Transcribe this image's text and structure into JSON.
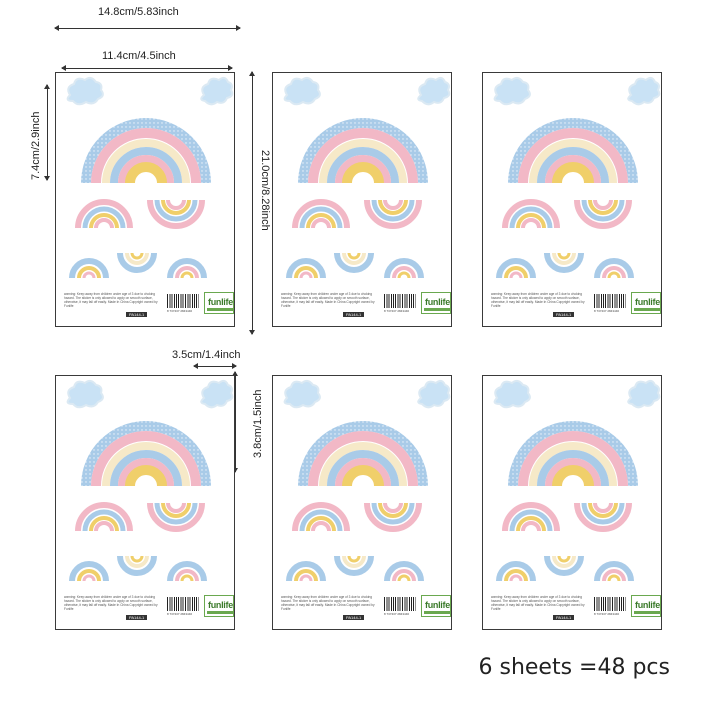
{
  "dimensions": {
    "sheet_width": "14.8cm/5.83inch",
    "art_width": "11.4cm/4.5inch",
    "art_height": "7.4cm/2.9inch",
    "sheet_height": "21.0cm/8.28inch",
    "small_width": "3.5cm/1.4inch",
    "small_height": "3.8cm/1.5inch"
  },
  "sheet": {
    "warning": "warning: Keep away from children under age of 3 due to choking hazard. The sticker is only allowed to apply on smooth surface, otherwise, it may fall off easily. Made In China Copyright owned by Funlife",
    "barcode_number": "8 737437 2843446",
    "brand": "funlife",
    "code": "PA144-1"
  },
  "summary": "6 sheets =48 pcs",
  "colors": {
    "pink": "#f2b8c6",
    "blue": "#a9cbe8",
    "cream": "#f6e9c8",
    "yellow": "#f0cf6a",
    "cloud": "#c9e2f5"
  }
}
